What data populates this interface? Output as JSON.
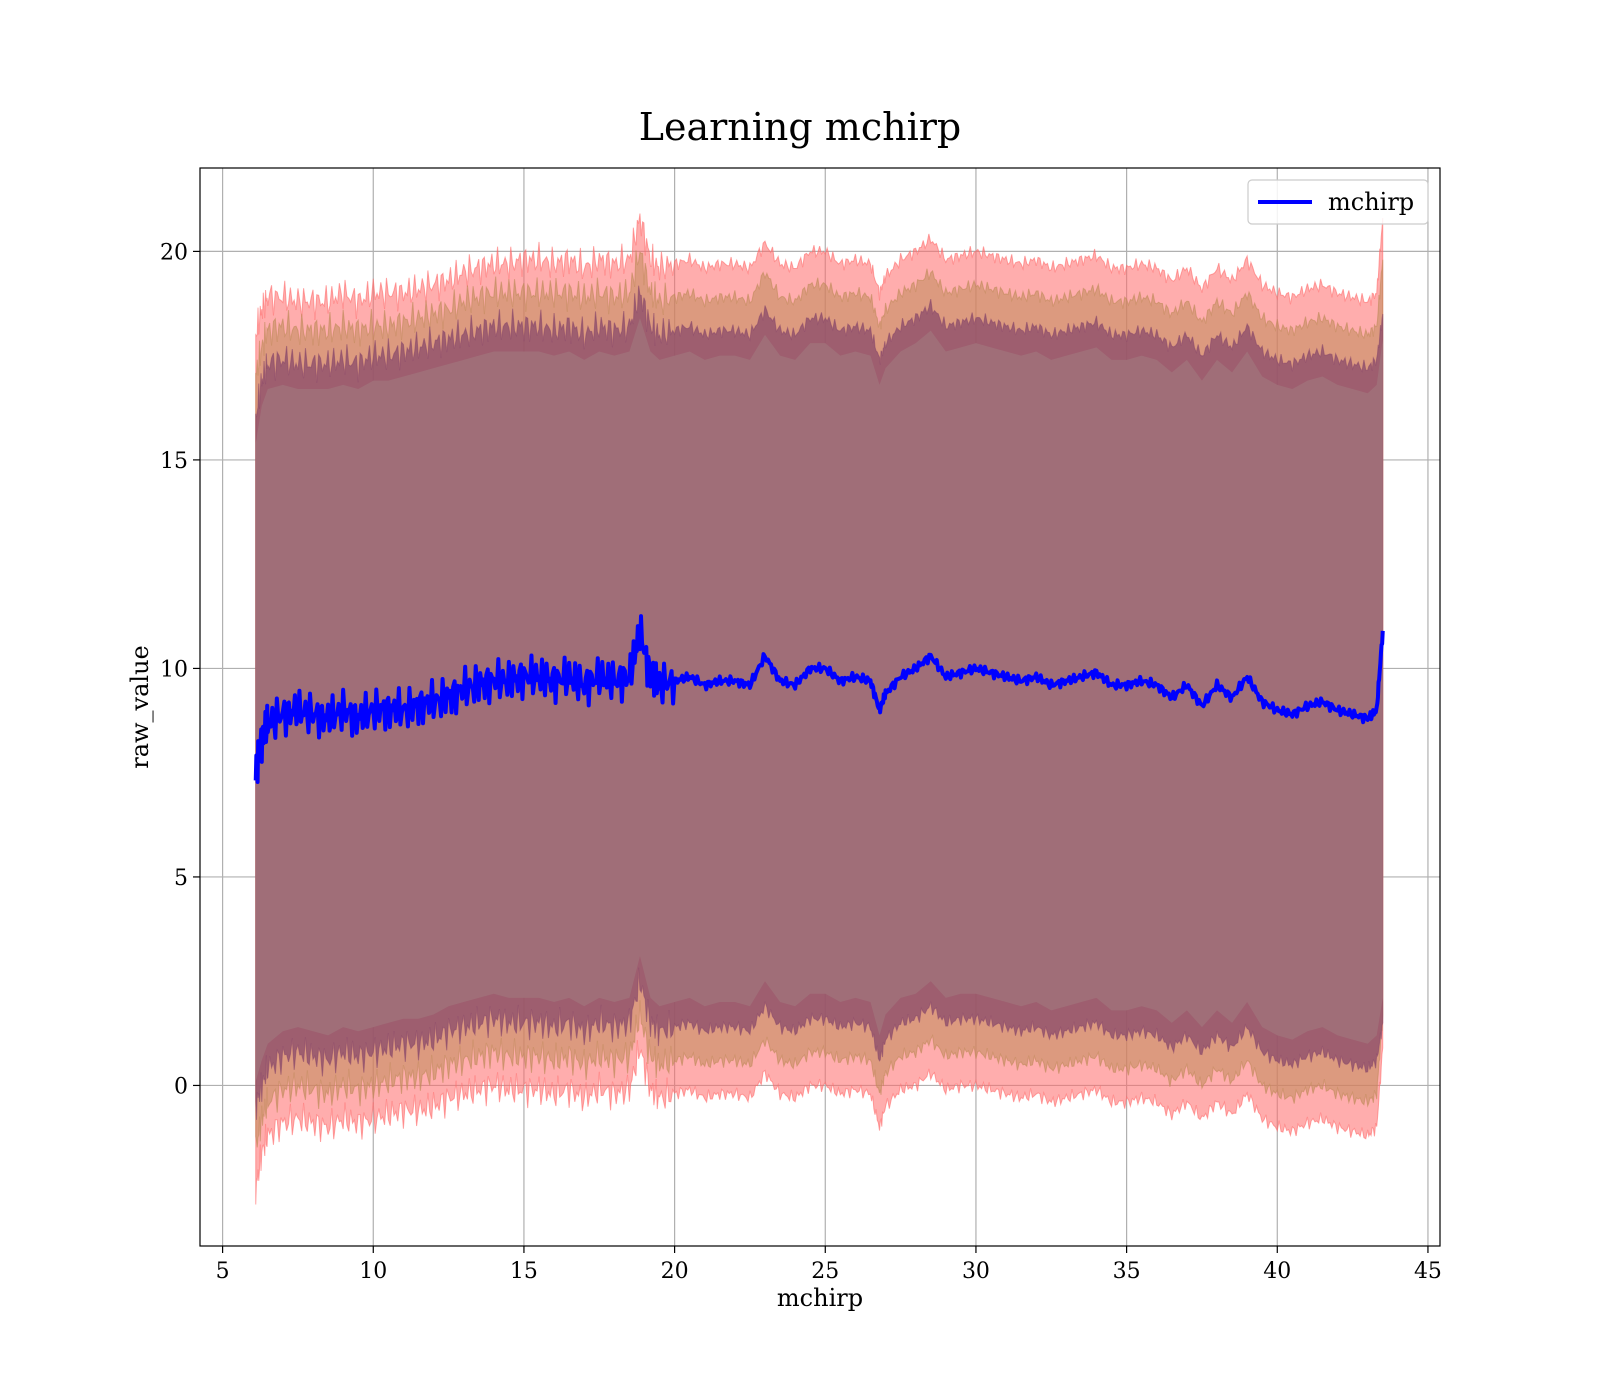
{
  "chart_data": {
    "type": "line",
    "title": "Learning mchirp",
    "xlabel": "mchirp",
    "ylabel": "raw_value",
    "xlim": [
      4.25,
      45.4
    ],
    "ylim": [
      -3.85,
      22
    ],
    "xticks": [
      5,
      10,
      15,
      20,
      25,
      30,
      35,
      40,
      45
    ],
    "yticks": [
      0,
      5,
      10,
      15,
      20
    ],
    "grid": true,
    "legend": {
      "position": "top-right",
      "entries": [
        "mchirp"
      ]
    },
    "colors": {
      "line": "#0000ff",
      "band_outer": "#ff6a6a",
      "band_middle": "#c08a5a",
      "band_inner": "#8a4a6a",
      "band_core": "#a06e78"
    },
    "series": [
      {
        "name": "mchirp",
        "x": [
          6.1,
          6.3,
          6.5,
          7.0,
          7.5,
          8.0,
          8.5,
          9.0,
          9.5,
          10.0,
          10.5,
          11.0,
          11.5,
          12.0,
          12.5,
          13.0,
          13.5,
          14.0,
          14.5,
          15.0,
          15.5,
          16.0,
          16.5,
          17.0,
          17.5,
          18.0,
          18.5,
          18.85,
          19.2,
          19.5,
          20.0,
          20.5,
          21.0,
          21.5,
          22.0,
          22.5,
          23.0,
          23.5,
          24.0,
          24.5,
          25.0,
          25.5,
          26.0,
          26.5,
          26.8,
          27.0,
          27.5,
          28.0,
          28.5,
          29.0,
          29.5,
          30.0,
          30.5,
          31.0,
          31.5,
          32.0,
          32.5,
          33.0,
          33.5,
          34.0,
          34.5,
          35.0,
          35.5,
          36.0,
          36.5,
          37.0,
          37.5,
          38.0,
          38.5,
          39.0,
          39.5,
          40.0,
          40.5,
          41.0,
          41.5,
          42.0,
          42.5,
          43.0,
          43.3,
          43.5
        ],
        "y": [
          7.5,
          8.3,
          8.7,
          8.9,
          9.0,
          8.9,
          8.8,
          9.0,
          8.8,
          9.0,
          9.0,
          9.0,
          9.1,
          9.2,
          9.3,
          9.5,
          9.6,
          9.7,
          9.7,
          9.8,
          9.8,
          9.7,
          9.8,
          9.6,
          9.8,
          9.7,
          9.8,
          10.9,
          9.8,
          9.6,
          9.7,
          9.8,
          9.6,
          9.7,
          9.7,
          9.6,
          10.3,
          9.7,
          9.6,
          10.0,
          10.0,
          9.7,
          9.8,
          9.7,
          9.0,
          9.4,
          9.8,
          10.0,
          10.3,
          9.8,
          9.9,
          10.0,
          9.9,
          9.8,
          9.7,
          9.8,
          9.6,
          9.7,
          9.8,
          9.9,
          9.6,
          9.6,
          9.7,
          9.6,
          9.3,
          9.6,
          9.1,
          9.6,
          9.3,
          9.8,
          9.2,
          9.0,
          8.9,
          9.1,
          9.2,
          9.0,
          8.9,
          8.8,
          9.0,
          10.9
        ]
      }
    ],
    "bands": [
      {
        "upper": [
          18.0,
          18.6,
          18.9,
          18.9,
          18.8,
          18.8,
          18.8,
          19.0,
          18.8,
          19.0,
          19.0,
          19.0,
          19.1,
          19.2,
          19.3,
          19.5,
          19.6,
          19.7,
          19.7,
          19.8,
          19.8,
          19.7,
          19.8,
          19.6,
          19.8,
          19.7,
          19.8,
          20.8,
          19.8,
          19.6,
          19.7,
          19.8,
          19.6,
          19.7,
          19.7,
          19.6,
          20.2,
          19.7,
          19.6,
          20.0,
          20.0,
          19.7,
          19.8,
          19.7,
          19.0,
          19.4,
          19.8,
          20.0,
          20.3,
          19.8,
          19.9,
          20.0,
          19.9,
          19.8,
          19.7,
          19.8,
          19.6,
          19.7,
          19.8,
          19.9,
          19.6,
          19.6,
          19.7,
          19.6,
          19.3,
          19.6,
          19.1,
          19.6,
          19.3,
          19.8,
          19.2,
          19.0,
          18.9,
          19.1,
          19.2,
          19.0,
          18.9,
          18.8,
          19.0,
          20.8
        ],
        "lower": [
          -2.5,
          -1.6,
          -1.2,
          -0.9,
          -0.8,
          -0.9,
          -1.0,
          -0.8,
          -0.9,
          -0.8,
          -0.7,
          -0.6,
          -0.6,
          -0.5,
          -0.3,
          -0.2,
          -0.1,
          0.0,
          -0.1,
          -0.1,
          -0.1,
          -0.2,
          -0.1,
          -0.3,
          -0.1,
          -0.2,
          -0.1,
          0.9,
          -0.1,
          -0.3,
          -0.2,
          -0.1,
          -0.3,
          -0.2,
          -0.2,
          -0.3,
          0.3,
          -0.2,
          -0.3,
          0.0,
          0.0,
          -0.2,
          -0.1,
          -0.2,
          -1.0,
          -0.5,
          -0.1,
          0.0,
          0.3,
          -0.1,
          0.0,
          0.0,
          -0.1,
          -0.2,
          -0.3,
          -0.2,
          -0.4,
          -0.3,
          -0.2,
          -0.1,
          -0.4,
          -0.4,
          -0.3,
          -0.4,
          -0.7,
          -0.4,
          -0.8,
          -0.4,
          -0.7,
          -0.2,
          -0.8,
          -1.0,
          -1.1,
          -0.9,
          -0.8,
          -1.0,
          -1.1,
          -1.2,
          -1.0,
          0.9
        ]
      },
      {
        "upper": [
          17.0,
          17.7,
          18.1,
          18.2,
          18.1,
          18.1,
          18.1,
          18.2,
          18.1,
          18.2,
          18.2,
          18.3,
          18.4,
          18.5,
          18.6,
          18.8,
          18.9,
          19.0,
          19.0,
          19.0,
          19.0,
          19.0,
          19.0,
          18.9,
          19.0,
          18.9,
          19.0,
          20.0,
          19.0,
          18.8,
          18.9,
          19.0,
          18.8,
          18.9,
          18.9,
          18.8,
          19.5,
          18.9,
          18.8,
          19.2,
          19.2,
          18.9,
          19.0,
          18.9,
          18.2,
          18.6,
          19.0,
          19.2,
          19.5,
          19.0,
          19.1,
          19.2,
          19.1,
          19.0,
          18.9,
          19.0,
          18.8,
          18.9,
          19.0,
          19.1,
          18.8,
          18.8,
          18.9,
          18.8,
          18.5,
          18.8,
          18.3,
          18.8,
          18.5,
          19.0,
          18.4,
          18.2,
          18.1,
          18.3,
          18.4,
          18.2,
          18.1,
          18.0,
          18.2,
          19.8
        ],
        "lower": [
          -1.5,
          -0.8,
          -0.4,
          -0.1,
          0.0,
          -0.1,
          -0.2,
          0.0,
          -0.1,
          0.0,
          0.1,
          0.2,
          0.2,
          0.3,
          0.5,
          0.6,
          0.7,
          0.8,
          0.7,
          0.7,
          0.7,
          0.6,
          0.7,
          0.5,
          0.7,
          0.6,
          0.7,
          1.7,
          0.7,
          0.5,
          0.6,
          0.7,
          0.5,
          0.6,
          0.6,
          0.5,
          1.1,
          0.6,
          0.5,
          0.8,
          0.8,
          0.6,
          0.7,
          0.6,
          -0.2,
          0.3,
          0.7,
          0.8,
          1.1,
          0.7,
          0.8,
          0.8,
          0.7,
          0.6,
          0.5,
          0.6,
          0.4,
          0.5,
          0.6,
          0.7,
          0.4,
          0.4,
          0.5,
          0.4,
          0.1,
          0.4,
          0.0,
          0.4,
          0.1,
          0.6,
          0.0,
          -0.2,
          -0.3,
          -0.1,
          0.0,
          -0.2,
          -0.3,
          -0.4,
          -0.2,
          1.7
        ]
      },
      {
        "upper": [
          16.0,
          16.9,
          17.3,
          17.4,
          17.3,
          17.3,
          17.3,
          17.4,
          17.3,
          17.5,
          17.5,
          17.6,
          17.7,
          17.8,
          17.9,
          18.0,
          18.1,
          18.2,
          18.2,
          18.2,
          18.2,
          18.1,
          18.2,
          18.0,
          18.2,
          18.1,
          18.2,
          19.0,
          18.2,
          18.0,
          18.1,
          18.2,
          18.0,
          18.1,
          18.1,
          18.0,
          18.6,
          18.1,
          18.0,
          18.4,
          18.4,
          18.1,
          18.2,
          18.1,
          17.4,
          17.8,
          18.2,
          18.4,
          18.7,
          18.2,
          18.3,
          18.4,
          18.3,
          18.2,
          18.1,
          18.2,
          18.0,
          18.1,
          18.2,
          18.3,
          18.0,
          18.0,
          18.1,
          18.0,
          17.7,
          18.0,
          17.5,
          18.0,
          17.7,
          18.2,
          17.6,
          17.4,
          17.3,
          17.5,
          17.6,
          17.4,
          17.3,
          17.2,
          17.4,
          18.5
        ],
        "lower": [
          -0.5,
          0.0,
          0.4,
          0.7,
          0.8,
          0.7,
          0.6,
          0.8,
          0.7,
          0.8,
          0.9,
          1.0,
          1.0,
          1.1,
          1.3,
          1.4,
          1.5,
          1.6,
          1.5,
          1.5,
          1.5,
          1.4,
          1.5,
          1.3,
          1.5,
          1.4,
          1.5,
          2.5,
          1.5,
          1.3,
          1.4,
          1.5,
          1.3,
          1.4,
          1.4,
          1.3,
          1.9,
          1.4,
          1.3,
          1.6,
          1.6,
          1.4,
          1.5,
          1.4,
          0.6,
          1.1,
          1.5,
          1.6,
          1.9,
          1.5,
          1.6,
          1.6,
          1.5,
          1.4,
          1.3,
          1.4,
          1.2,
          1.3,
          1.4,
          1.5,
          1.2,
          1.2,
          1.3,
          1.2,
          0.9,
          1.2,
          0.8,
          1.2,
          0.9,
          1.4,
          0.8,
          0.6,
          0.5,
          0.7,
          0.8,
          0.6,
          0.5,
          0.4,
          0.6,
          1.5
        ]
      }
    ]
  }
}
